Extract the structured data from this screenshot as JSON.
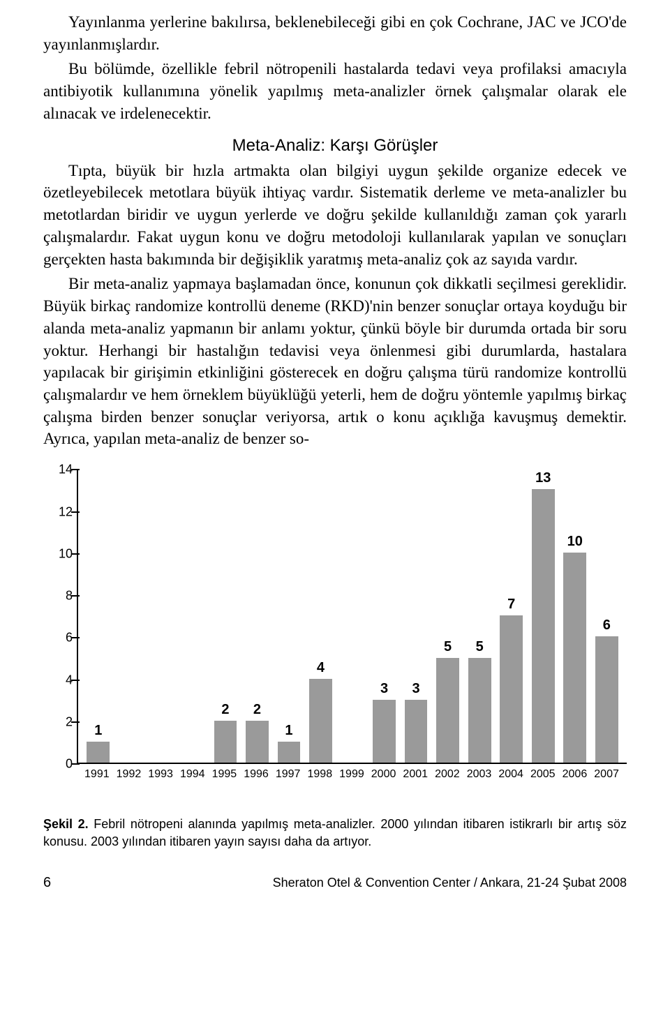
{
  "paragraphs": {
    "p1": "Yayınlanma yerlerine bakılırsa, beklenebileceği gibi en çok Cochrane, JAC ve JCO'de yayınlanmışlardır.",
    "p2": "Bu bölümde, özellikle febril nötropenili hastalarda tedavi veya profilaksi amacıyla antibiyotik kullanımına yönelik yapılmış meta-analizler örnek çalışmalar olarak ele alınacak ve irdelenecektir.",
    "subheading": "Meta-Analiz: Karşı Görüşler",
    "p3": "Tıpta, büyük bir hızla artmakta olan bilgiyi uygun şekilde organize edecek ve özetleyebilecek metotlara büyük ihtiyaç vardır. Sistematik derleme ve meta-analizler bu metotlardan biridir ve uygun yerlerde ve doğru şekilde kullanıldığı zaman çok yararlı çalışmalardır. Fakat uygun konu ve doğru metodoloji kullanılarak yapılan ve sonuçları gerçekten hasta bakımında bir değişiklik yaratmış meta-analiz çok az sayıda vardır.",
    "p4": "Bir meta-analiz yapmaya başlamadan önce, konunun çok dikkatli seçilmesi gereklidir. Büyük birkaç randomize kontrollü deneme (RKD)'nin benzer sonuçlar ortaya koyduğu bir alanda meta-analiz yapmanın bir anlamı yoktur, çünkü böyle bir durumda ortada bir soru yoktur. Herhangi bir hastalığın tedavisi veya önlenmesi gibi durumlarda, hastalara yapılacak bir girişimin etkinliğini gösterecek en doğru çalışma türü randomize kontrollü çalışmalardır ve hem örneklem büyüklüğü yeterli, hem de doğru yöntemle yapılmış birkaç çalışma birden benzer sonuçlar veriyorsa, artık o konu açıklığa kavuşmuş demektir. Ayrıca, yapılan meta-analiz de benzer so-"
  },
  "chart": {
    "type": "bar",
    "categories": [
      "1991",
      "1992",
      "1993",
      "1994",
      "1995",
      "1996",
      "1997",
      "1998",
      "1999",
      "2000",
      "2001",
      "2002",
      "2003",
      "2004",
      "2005",
      "2006",
      "2007"
    ],
    "values": [
      1,
      0,
      0,
      0,
      2,
      2,
      1,
      4,
      0,
      3,
      3,
      5,
      5,
      7,
      13,
      10,
      6
    ],
    "bar_color": "#9a9a9a",
    "value_color": "#000000",
    "y_ticks": [
      0,
      2,
      4,
      6,
      8,
      10,
      12,
      14
    ],
    "ylim_max": 14,
    "axis_color": "#000000",
    "bar_width_ratio": 0.72,
    "value_fontsize": 20,
    "value_fontweight": "bold",
    "axis_label_fontsize": 18,
    "xlabel_fontsize": 16,
    "background_color": "#ffffff"
  },
  "caption": {
    "lead": "Şekil 2.",
    "rest": " Febril nötropeni alanında yapılmış meta-analizler. 2000 yılından itibaren istikrarlı bir artış söz konusu. 2003 yılından itibaren yayın sayısı daha da artıyor."
  },
  "footer": {
    "page_number": "6",
    "venue": "Sheraton Otel & Convention Center / Ankara, 21-24 Şubat 2008"
  }
}
